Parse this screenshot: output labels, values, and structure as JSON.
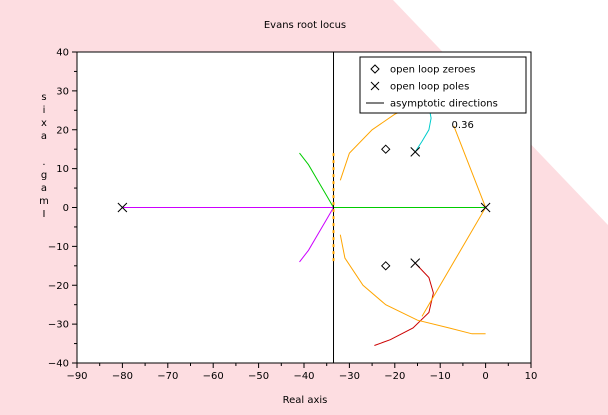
{
  "chart_data": {
    "type": "scatter",
    "title": "Evans root locus",
    "xlabel": "Real axis",
    "ylabel": "Imag. axis",
    "xlim": [
      -90,
      10
    ],
    "ylim": [
      -40,
      40
    ],
    "xticks": [
      "−90",
      "−80",
      "−70",
      "−60",
      "−50",
      "−40",
      "−30",
      "−20",
      "−10",
      "0",
      "10"
    ],
    "yticks": [
      "40",
      "30",
      "20",
      "10",
      "0",
      "−10",
      "−20",
      "−30",
      "−40"
    ],
    "grid": false,
    "background_region_color": "#fddde1",
    "legend": {
      "position": "top-right",
      "entries": [
        {
          "label": "open loop zeroes",
          "marker": "diamond"
        },
        {
          "label": "open loop poles",
          "marker": "cross"
        },
        {
          "label": "asymptotic directions",
          "marker": "line"
        }
      ]
    },
    "annotation": {
      "text": "0.36",
      "x": -7.5,
      "y": 20.5
    },
    "open_loop_poles": [
      [
        -80,
        0
      ],
      [
        0,
        0
      ],
      [
        -15.5,
        14.3
      ],
      [
        -15.5,
        -14.3
      ]
    ],
    "open_loop_zeroes": [
      [
        -22,
        15
      ],
      [
        -22,
        -15
      ]
    ],
    "asymptote_center_x": -33.5,
    "branches": [
      {
        "color": "#cc00ff",
        "points": [
          [
            -80,
            0
          ],
          [
            -60,
            0
          ],
          [
            -45,
            0
          ],
          [
            -36,
            0
          ],
          [
            -33.5,
            0
          ],
          [
            -35,
            -3
          ],
          [
            -37,
            -7
          ],
          [
            -39,
            -11
          ],
          [
            -41,
            -14
          ]
        ]
      },
      {
        "color": "#00cc00",
        "points": [
          [
            0,
            0
          ],
          [
            -10,
            0
          ],
          [
            -20,
            0
          ],
          [
            -30,
            0
          ],
          [
            -33.5,
            0
          ],
          [
            -35,
            3
          ],
          [
            -37,
            7
          ],
          [
            -39,
            11
          ],
          [
            -41,
            14
          ]
        ]
      },
      {
        "color": "#00cccc",
        "points": [
          [
            -15.5,
            14.3
          ],
          [
            -14,
            17
          ],
          [
            -12.5,
            20
          ],
          [
            -12,
            23
          ],
          [
            -12.5,
            26
          ]
        ]
      },
      {
        "color": "#cc0000",
        "points": [
          [
            -15.5,
            -14.3
          ],
          [
            -12.5,
            -18
          ],
          [
            -11.5,
            -22
          ],
          [
            -12.5,
            -27
          ],
          [
            -16,
            -31
          ],
          [
            -21,
            -34
          ],
          [
            -24.5,
            -35.5
          ]
        ]
      },
      {
        "color": "#ffa500",
        "points": [
          [
            -32,
            -7
          ],
          [
            -31,
            -13
          ],
          [
            -27,
            -20
          ],
          [
            -22,
            -25
          ],
          [
            -15,
            -29
          ],
          [
            -8,
            -31
          ],
          [
            -3,
            -32.5
          ],
          [
            0,
            -32.5
          ]
        ]
      },
      {
        "color": "#ffa500",
        "points": [
          [
            -32,
            7
          ],
          [
            -30,
            14
          ],
          [
            -25,
            20
          ],
          [
            -20,
            24
          ],
          [
            -14,
            27
          ],
          [
            -9,
            27
          ]
        ]
      },
      {
        "color": "#ffa500",
        "points": [
          [
            -7,
            21
          ],
          [
            -4,
            12
          ],
          [
            0,
            0
          ],
          [
            -7,
            -14
          ],
          [
            -14,
            -28
          ]
        ]
      }
    ]
  }
}
